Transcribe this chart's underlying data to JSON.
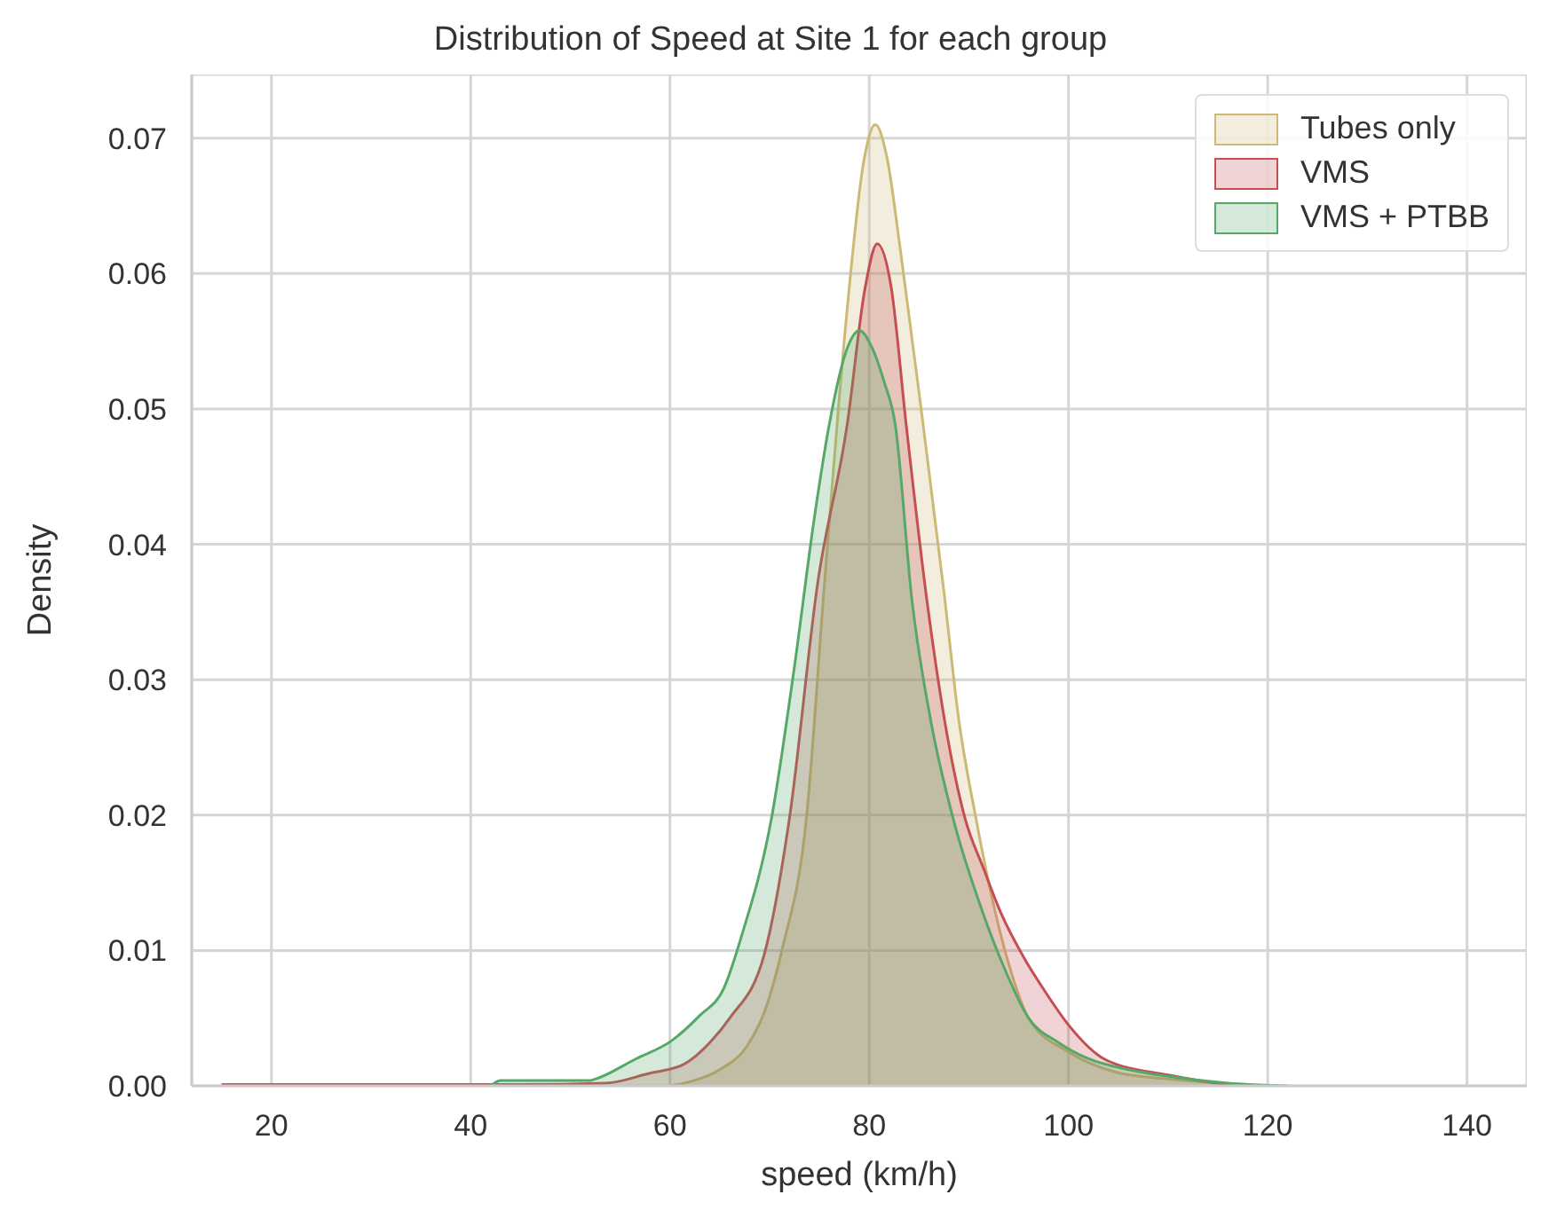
{
  "chart_data": {
    "type": "area",
    "title": "Distribution of Speed at Site 1 for each group",
    "xlabel": "speed (km/h)",
    "ylabel": "Density",
    "xlim": [
      12,
      146
    ],
    "xticks": [
      20,
      40,
      60,
      80,
      100,
      120,
      140
    ],
    "ylim": [
      0,
      0.0747
    ],
    "yticks": [
      {
        "value": 0,
        "label": "0.00"
      },
      0.01,
      0.02,
      0.03,
      0.04,
      0.05,
      0.06,
      0.07
    ],
    "grid": true,
    "legend": "top right",
    "series": [
      {
        "name": "Tubes only",
        "color": "#ccb974",
        "x": [
          60,
          62,
          65,
          67.7,
          69.5,
          71.3,
          73.7,
          75.5,
          77.7,
          79.5,
          80.6,
          81.8,
          83.1,
          85.4,
          87.5,
          89,
          90.7,
          92.5,
          94,
          96,
          100,
          104.8,
          110,
          115,
          120
        ],
        "values": [
          0,
          0.0003,
          0.0012,
          0.0029,
          0.0055,
          0.0102,
          0.0198,
          0.037,
          0.0567,
          0.0685,
          0.071,
          0.0685,
          0.0619,
          0.0489,
          0.0365,
          0.027,
          0.0198,
          0.0133,
          0.009,
          0.005,
          0.0025,
          0.001,
          0.0005,
          0.0002,
          0
        ]
      },
      {
        "name": "VMS",
        "color": "#c44e52",
        "x": [
          15,
          30,
          45,
          53.6,
          57.8,
          61.4,
          64,
          66,
          69.5,
          72,
          74.8,
          77.8,
          79.6,
          80.8,
          82.2,
          83.7,
          85.8,
          87.8,
          89.6,
          91.5,
          93.2,
          95.5,
          97.8,
          100,
          103.8,
          110,
          115,
          120
        ],
        "values": [
          0.0001,
          0.0001,
          0.0001,
          0.0002,
          0.0009,
          0.0016,
          0.0032,
          0.005,
          0.0098,
          0.0198,
          0.037,
          0.0489,
          0.059,
          0.0622,
          0.059,
          0.0489,
          0.0358,
          0.026,
          0.0198,
          0.016,
          0.0128,
          0.0095,
          0.0068,
          0.0045,
          0.0019,
          0.0008,
          0.0002,
          0
        ]
      },
      {
        "name": "VMS + PTBB",
        "color": "#55a868",
        "x": [
          42,
          43,
          47,
          52,
          52.5,
          56.6,
          60.1,
          63,
          65.4,
          67.2,
          70.2,
          72.5,
          74.5,
          76,
          77.8,
          79,
          80.3,
          81.5,
          82.6,
          84.3,
          86.3,
          88.4,
          91.4,
          93.5,
          96,
          99,
          102,
          106,
          110,
          116,
          122
        ],
        "values": [
          0,
          0.0004,
          0.0004,
          0.0004,
          0.0005,
          0.002,
          0.0033,
          0.0052,
          0.0072,
          0.0111,
          0.0198,
          0.031,
          0.042,
          0.0489,
          0.0545,
          0.0558,
          0.0545,
          0.052,
          0.0489,
          0.0358,
          0.0265,
          0.0198,
          0.0128,
          0.0088,
          0.005,
          0.0032,
          0.002,
          0.0012,
          0.0007,
          0.0002,
          0
        ]
      }
    ]
  }
}
